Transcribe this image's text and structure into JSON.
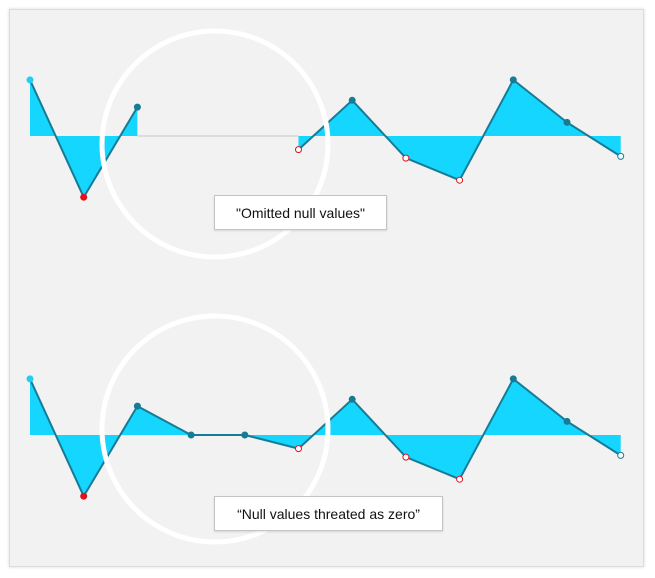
{
  "colors": {
    "area": "#14d6fe",
    "line": "#177b96",
    "point": "#177b96",
    "first_point": "#22cef3",
    "min_point": "#e0121d",
    "negative_point_fill": "#ffffff",
    "negative_point_stroke": "#e0121d",
    "last_point_stroke": "#177b96",
    "gap_line": "#c8c8c8",
    "highlight_circle": "#ffffff",
    "panel_bg": "#f2f2f2"
  },
  "chart_data": [
    {
      "type": "area",
      "null_handling": "omitted",
      "x": [
        1,
        2,
        3,
        4,
        5,
        6,
        7,
        8,
        9,
        10,
        11,
        12
      ],
      "values": [
        3.3,
        -3.6,
        1.7,
        null,
        null,
        -0.8,
        2.1,
        -1.3,
        -2.6,
        3.3,
        0.8,
        -1.2
      ],
      "baseline": 0,
      "ylim": [
        -4,
        4
      ],
      "title": "",
      "xlabel": "",
      "ylabel": ""
    },
    {
      "type": "area",
      "null_handling": "zero",
      "x": [
        1,
        2,
        3,
        4,
        5,
        6,
        7,
        8,
        9,
        10,
        11,
        12
      ],
      "values": [
        3.3,
        -3.6,
        1.7,
        0,
        0,
        -0.8,
        2.1,
        -1.3,
        -2.6,
        3.3,
        0.8,
        -1.2
      ],
      "baseline": 0,
      "ylim": [
        -4,
        4
      ],
      "title": "",
      "xlabel": "",
      "ylabel": ""
    }
  ],
  "annotations": {
    "omitted_label": "\"Omitted null values\"",
    "zero_label": "“Null values threated as zero”"
  }
}
